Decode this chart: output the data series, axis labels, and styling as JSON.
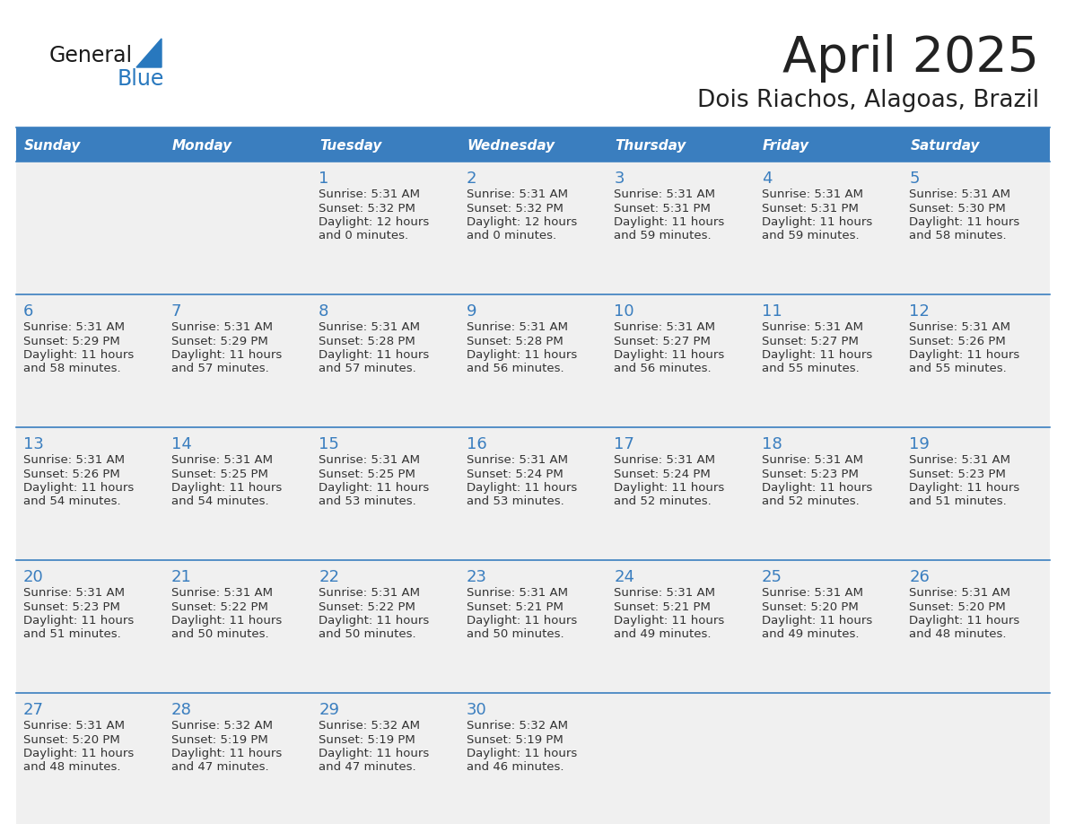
{
  "title": "April 2025",
  "subtitle": "Dois Riachos, Alagoas, Brazil",
  "header_bg": "#3a7ebf",
  "header_text_color": "#ffffff",
  "cell_bg": "#f0f0f0",
  "border_color": "#3a7ebf",
  "days_of_week": [
    "Sunday",
    "Monday",
    "Tuesday",
    "Wednesday",
    "Thursday",
    "Friday",
    "Saturday"
  ],
  "title_color": "#222222",
  "subtitle_color": "#222222",
  "day_number_color": "#3a7ebf",
  "cell_text_color": "#333333",
  "logo_general_color": "#1a1a1a",
  "logo_blue_color": "#2878be",
  "logo_triangle_color": "#2878be",
  "calendar": [
    [
      {
        "day": null,
        "sunrise": null,
        "sunset": null,
        "daylight": null
      },
      {
        "day": null,
        "sunrise": null,
        "sunset": null,
        "daylight": null
      },
      {
        "day": 1,
        "sunrise": "5:31 AM",
        "sunset": "5:32 PM",
        "daylight": "12 hours and 0 minutes."
      },
      {
        "day": 2,
        "sunrise": "5:31 AM",
        "sunset": "5:32 PM",
        "daylight": "12 hours and 0 minutes."
      },
      {
        "day": 3,
        "sunrise": "5:31 AM",
        "sunset": "5:31 PM",
        "daylight": "11 hours and 59 minutes."
      },
      {
        "day": 4,
        "sunrise": "5:31 AM",
        "sunset": "5:31 PM",
        "daylight": "11 hours and 59 minutes."
      },
      {
        "day": 5,
        "sunrise": "5:31 AM",
        "sunset": "5:30 PM",
        "daylight": "11 hours and 58 minutes."
      }
    ],
    [
      {
        "day": 6,
        "sunrise": "5:31 AM",
        "sunset": "5:29 PM",
        "daylight": "11 hours and 58 minutes."
      },
      {
        "day": 7,
        "sunrise": "5:31 AM",
        "sunset": "5:29 PM",
        "daylight": "11 hours and 57 minutes."
      },
      {
        "day": 8,
        "sunrise": "5:31 AM",
        "sunset": "5:28 PM",
        "daylight": "11 hours and 57 minutes."
      },
      {
        "day": 9,
        "sunrise": "5:31 AM",
        "sunset": "5:28 PM",
        "daylight": "11 hours and 56 minutes."
      },
      {
        "day": 10,
        "sunrise": "5:31 AM",
        "sunset": "5:27 PM",
        "daylight": "11 hours and 56 minutes."
      },
      {
        "day": 11,
        "sunrise": "5:31 AM",
        "sunset": "5:27 PM",
        "daylight": "11 hours and 55 minutes."
      },
      {
        "day": 12,
        "sunrise": "5:31 AM",
        "sunset": "5:26 PM",
        "daylight": "11 hours and 55 minutes."
      }
    ],
    [
      {
        "day": 13,
        "sunrise": "5:31 AM",
        "sunset": "5:26 PM",
        "daylight": "11 hours and 54 minutes."
      },
      {
        "day": 14,
        "sunrise": "5:31 AM",
        "sunset": "5:25 PM",
        "daylight": "11 hours and 54 minutes."
      },
      {
        "day": 15,
        "sunrise": "5:31 AM",
        "sunset": "5:25 PM",
        "daylight": "11 hours and 53 minutes."
      },
      {
        "day": 16,
        "sunrise": "5:31 AM",
        "sunset": "5:24 PM",
        "daylight": "11 hours and 53 minutes."
      },
      {
        "day": 17,
        "sunrise": "5:31 AM",
        "sunset": "5:24 PM",
        "daylight": "11 hours and 52 minutes."
      },
      {
        "day": 18,
        "sunrise": "5:31 AM",
        "sunset": "5:23 PM",
        "daylight": "11 hours and 52 minutes."
      },
      {
        "day": 19,
        "sunrise": "5:31 AM",
        "sunset": "5:23 PM",
        "daylight": "11 hours and 51 minutes."
      }
    ],
    [
      {
        "day": 20,
        "sunrise": "5:31 AM",
        "sunset": "5:23 PM",
        "daylight": "11 hours and 51 minutes."
      },
      {
        "day": 21,
        "sunrise": "5:31 AM",
        "sunset": "5:22 PM",
        "daylight": "11 hours and 50 minutes."
      },
      {
        "day": 22,
        "sunrise": "5:31 AM",
        "sunset": "5:22 PM",
        "daylight": "11 hours and 50 minutes."
      },
      {
        "day": 23,
        "sunrise": "5:31 AM",
        "sunset": "5:21 PM",
        "daylight": "11 hours and 50 minutes."
      },
      {
        "day": 24,
        "sunrise": "5:31 AM",
        "sunset": "5:21 PM",
        "daylight": "11 hours and 49 minutes."
      },
      {
        "day": 25,
        "sunrise": "5:31 AM",
        "sunset": "5:20 PM",
        "daylight": "11 hours and 49 minutes."
      },
      {
        "day": 26,
        "sunrise": "5:31 AM",
        "sunset": "5:20 PM",
        "daylight": "11 hours and 48 minutes."
      }
    ],
    [
      {
        "day": 27,
        "sunrise": "5:31 AM",
        "sunset": "5:20 PM",
        "daylight": "11 hours and 48 minutes."
      },
      {
        "day": 28,
        "sunrise": "5:32 AM",
        "sunset": "5:19 PM",
        "daylight": "11 hours and 47 minutes."
      },
      {
        "day": 29,
        "sunrise": "5:32 AM",
        "sunset": "5:19 PM",
        "daylight": "11 hours and 47 minutes."
      },
      {
        "day": 30,
        "sunrise": "5:32 AM",
        "sunset": "5:19 PM",
        "daylight": "11 hours and 46 minutes."
      },
      {
        "day": null,
        "sunrise": null,
        "sunset": null,
        "daylight": null
      },
      {
        "day": null,
        "sunrise": null,
        "sunset": null,
        "daylight": null
      },
      {
        "day": null,
        "sunrise": null,
        "sunset": null,
        "daylight": null
      }
    ]
  ]
}
